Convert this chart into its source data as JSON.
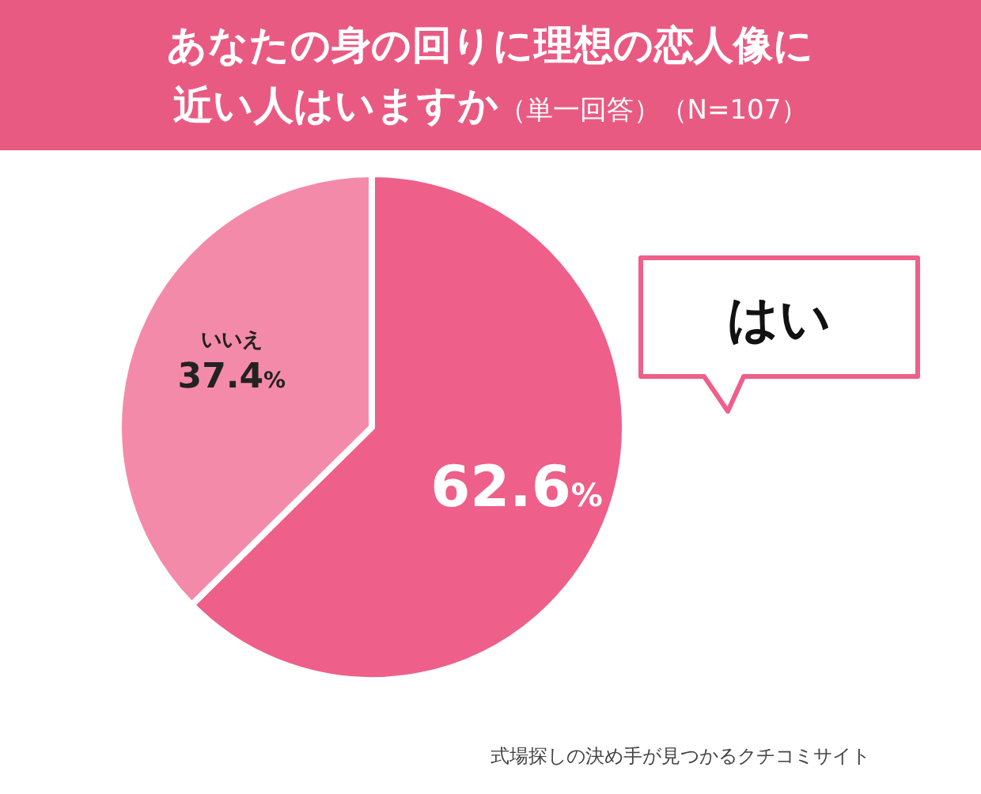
{
  "chart_data": {
    "type": "pie",
    "title": "あなたの身の回りに理想の恋人像に近い人はいますか",
    "subtitle": "（単一回答）（N=107）",
    "categories": [
      "はい",
      "いいえ"
    ],
    "values": [
      62.6,
      37.4
    ],
    "value_labels": [
      "62.6%",
      "37.4%"
    ],
    "colors": [
      "#ee5f89",
      "#f48aa9"
    ],
    "annotations": [
      "式場探しの決め手が見つかるクチコミサイト"
    ],
    "legend": false
  }
}
